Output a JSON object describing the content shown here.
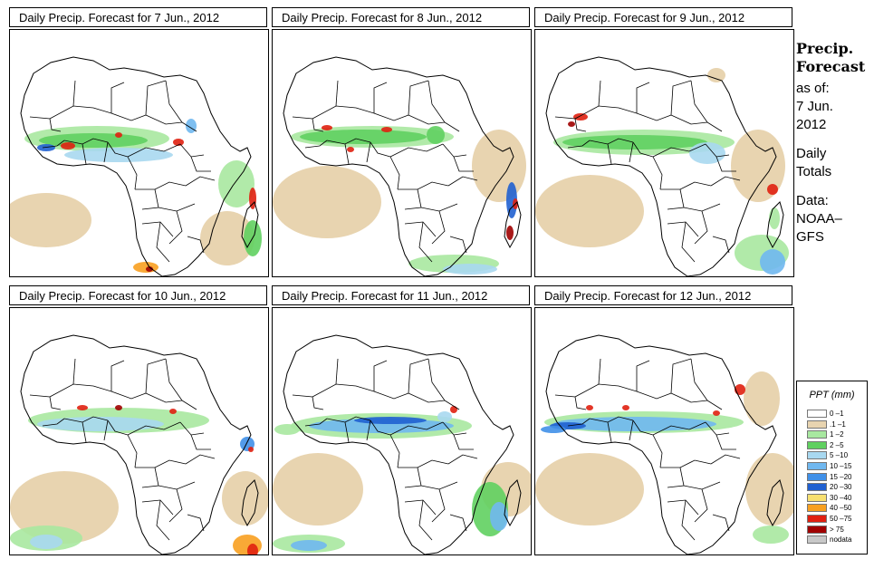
{
  "panels": [
    {
      "title": "Daily Precip. Forecast for  7 Jun., 2012"
    },
    {
      "title": "Daily Precip. Forecast for  8 Jun., 2012"
    },
    {
      "title": "Daily Precip. Forecast for  9 Jun., 2012"
    },
    {
      "title": "Daily Precip. Forecast for  10 Jun., 2012"
    },
    {
      "title": "Daily Precip. Forecast for  11 Jun., 2012"
    },
    {
      "title": "Daily Precip. Forecast for  12 Jun., 2012"
    }
  ],
  "sidebar": {
    "heading_line1": "Precip.",
    "heading_line2": "Forecast",
    "as_of": "as of:",
    "date_day": "7 Jun.",
    "date_year": "2012",
    "totals_line1": "Daily",
    "totals_line2": "Totals",
    "data_line1": "Data:",
    "data_line2": "NOAA–",
    "data_line3": "GFS"
  },
  "legend": {
    "title": "PPT (mm)",
    "classes": [
      {
        "label": "0 –1",
        "color": "#ffffff"
      },
      {
        "label": ".1 –1",
        "color": "#e8d4b0"
      },
      {
        "label": "1 –2",
        "color": "#a8e8a0"
      },
      {
        "label": "2 –5",
        "color": "#60d060"
      },
      {
        "label": "5 –10",
        "color": "#a8d8f0"
      },
      {
        "label": "10 –15",
        "color": "#70b8f0"
      },
      {
        "label": "15 –20",
        "color": "#4090e8"
      },
      {
        "label": "20 –30",
        "color": "#2060d0"
      },
      {
        "label": "30 –40",
        "color": "#f8e070"
      },
      {
        "label": "40 –50",
        "color": "#f8a020"
      },
      {
        "label": "50 –75",
        "color": "#e02010"
      },
      {
        "label": "> 75",
        "color": "#a00000"
      },
      {
        "label": "nodata",
        "color": "#c8c8c8"
      }
    ]
  }
}
